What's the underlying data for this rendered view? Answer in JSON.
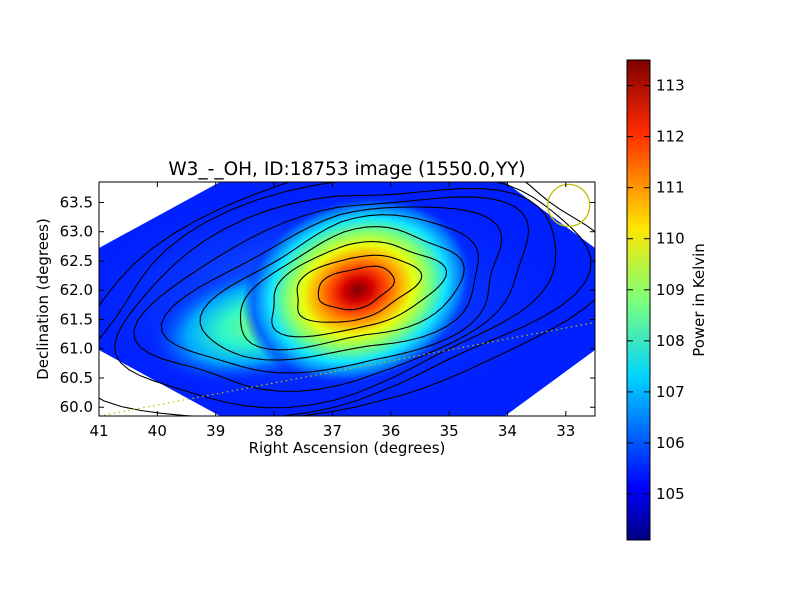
{
  "chart_data": {
    "type": "heatmap",
    "title": "W3_-_OH, ID:18753 image (1550.0,YY)",
    "xlabel": "Right Ascension (degrees)",
    "ylabel": "Declination (degrees)",
    "xlim": [
      41,
      32.5
    ],
    "ylim": [
      59.85,
      63.85
    ],
    "x_ticks": [
      41,
      40,
      39,
      38,
      37,
      36,
      35,
      34,
      33
    ],
    "y_ticks": [
      60.0,
      60.5,
      61.0,
      61.5,
      62.0,
      62.5,
      63.0,
      63.5
    ],
    "x_tick_labels": [
      "41",
      "40",
      "39",
      "38",
      "37",
      "36",
      "35",
      "34",
      "33"
    ],
    "y_tick_labels": [
      "60.0",
      "60.5",
      "61.0",
      "61.5",
      "62.0",
      "62.5",
      "63.0",
      "63.5"
    ],
    "colorbar": {
      "label": "Power in Kelvin",
      "range": [
        104.1,
        113.5
      ],
      "ticks": [
        "105",
        "106",
        "107",
        "108",
        "109",
        "110",
        "111",
        "112",
        "113"
      ],
      "tick_values": [
        105,
        106,
        107,
        108,
        109,
        110,
        111,
        112,
        113
      ],
      "colormap": "jet"
    },
    "peak": {
      "ra": 36.6,
      "dec": 62.05,
      "value": 113.4
    },
    "background_value": 104.8,
    "contour_levels": [
      105.5,
      106.3,
      107.1,
      107.9,
      108.7,
      109.5,
      110.3,
      111.1,
      111.9,
      112.7
    ],
    "beam_marker": {
      "ra": 32.95,
      "dec": 63.45,
      "shape": "circle",
      "color": "#bfbf00"
    },
    "dotted_line": {
      "color": "#bfbf00",
      "from": [
        41,
        59.85
      ],
      "to": [
        32.5,
        61.45
      ]
    }
  }
}
